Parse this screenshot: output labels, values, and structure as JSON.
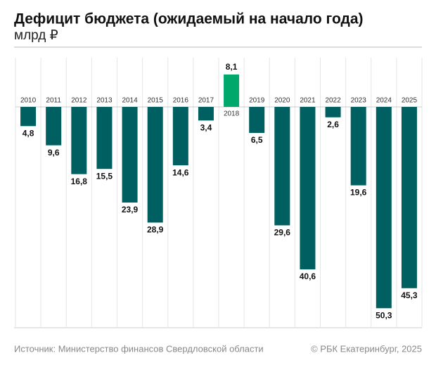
{
  "chart_data": {
    "type": "bar",
    "title": "Дефицит бюджета (ожидаемый на начало года)",
    "subtitle": "млрд ₽",
    "source": "Источник: Министерство финансов Свердловской области",
    "copyright": "© РБК Екатеринбург, 2025",
    "categories": [
      "2010",
      "2011",
      "2012",
      "2013",
      "2014",
      "2015",
      "2016",
      "2017",
      "2018",
      "2019",
      "2020",
      "2021",
      "2022",
      "2023",
      "2024",
      "2025"
    ],
    "values": [
      -4.8,
      -9.6,
      -16.8,
      -15.5,
      -23.9,
      -28.9,
      -14.6,
      -3.4,
      8.1,
      -6.5,
      -29.6,
      -40.6,
      -2.6,
      -19.6,
      -50.3,
      -45.3
    ],
    "value_labels": [
      "4,8",
      "9,6",
      "16,8",
      "15,5",
      "23,9",
      "28,9",
      "14,6",
      "3,4",
      "8,1",
      "6,5",
      "29,6",
      "40,6",
      "2,6",
      "19,6",
      "50,3",
      "45,3"
    ],
    "colors": [
      "#005f61",
      "#005f61",
      "#005f61",
      "#005f61",
      "#005f61",
      "#005f61",
      "#005f61",
      "#005f61",
      "#00a86b",
      "#005f61",
      "#005f61",
      "#005f61",
      "#005f61",
      "#005f61",
      "#005f61",
      "#005f61"
    ],
    "ylim": [
      -55,
      12.3
    ]
  }
}
